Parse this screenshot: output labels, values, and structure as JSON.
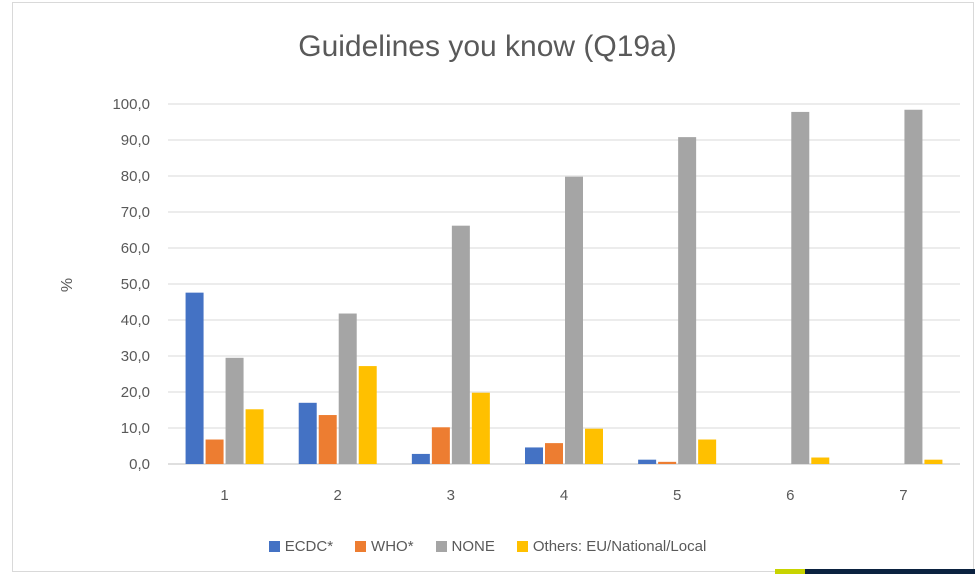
{
  "chart_data": {
    "type": "bar",
    "title": "Guidelines you know (Q19a)",
    "xlabel": "",
    "ylabel": "%",
    "categories": [
      "1",
      "2",
      "3",
      "4",
      "5",
      "6",
      "7"
    ],
    "ylim": [
      0,
      100
    ],
    "yticks": [
      "0,0",
      "10,0",
      "20,0",
      "30,0",
      "40,0",
      "50,0",
      "60,0",
      "70,0",
      "80,0",
      "90,0",
      "100,0"
    ],
    "grid": true,
    "legend_position": "bottom",
    "series": [
      {
        "name": "ECDC*",
        "color": "#4472c4",
        "values": [
          47.6,
          17.0,
          2.8,
          4.6,
          1.2,
          0.0,
          0.0
        ]
      },
      {
        "name": "WHO*",
        "color": "#ed7d31",
        "values": [
          6.8,
          13.6,
          10.2,
          5.8,
          0.6,
          0.0,
          0.0
        ]
      },
      {
        "name": "NONE",
        "color": "#a5a5a5",
        "values": [
          29.5,
          41.8,
          66.2,
          79.8,
          90.8,
          97.8,
          98.4
        ]
      },
      {
        "name": "Others: EU/National/Local",
        "color": "#ffc000",
        "values": [
          15.2,
          27.2,
          19.8,
          9.8,
          6.8,
          1.8,
          1.2
        ]
      }
    ]
  }
}
